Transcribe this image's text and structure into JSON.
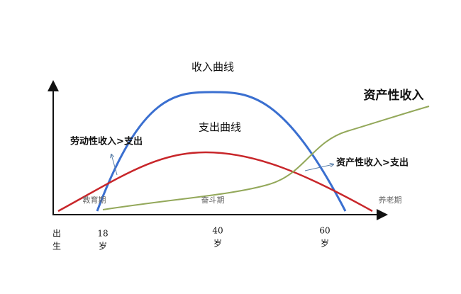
{
  "title": "收入曲线",
  "expense_label": "支出曲线",
  "asset_income_label": "资产性收入",
  "annotations": {
    "labor": "劳动性收入>支出",
    "asset": "资产性收入>支出"
  },
  "phases": [
    "教育期",
    "奋斗期",
    "养老期"
  ],
  "x_labels": [
    {
      "lines": [
        "出",
        "生"
      ]
    },
    {
      "lines": [
        "18",
        "岁"
      ]
    },
    {
      "lines": [
        "40",
        "岁"
      ]
    },
    {
      "lines": [
        "60",
        "岁"
      ]
    }
  ]
}
